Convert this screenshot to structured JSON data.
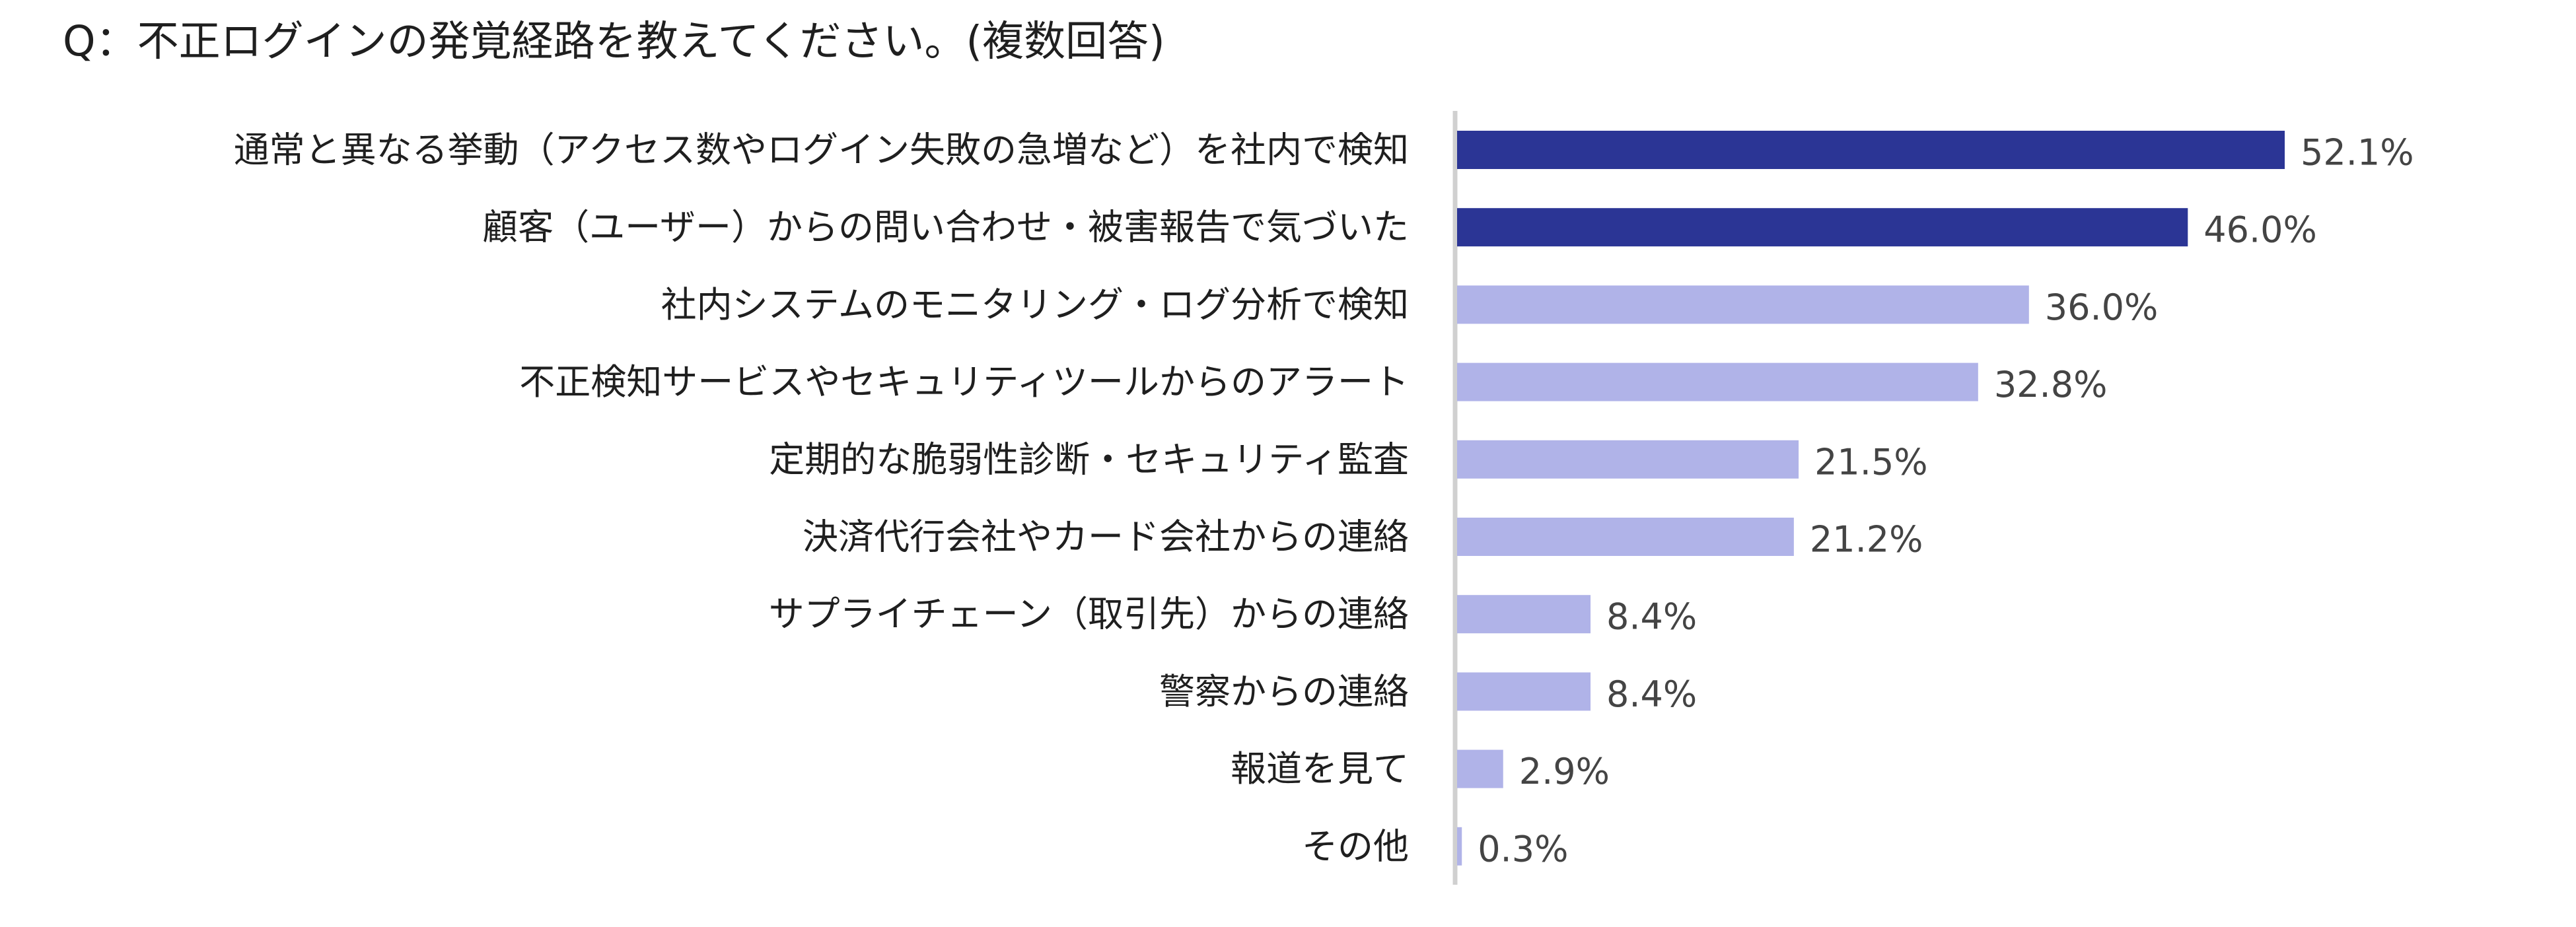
{
  "chart_data": {
    "type": "bar",
    "orientation": "horizontal",
    "title": "Q：不正ログインの発覚経路を教えてください。(複数回答)",
    "categories": [
      "通常と異なる挙動（アクセス数やログイン失敗の急増など）を社内で検知",
      "顧客（ユーザー）からの問い合わせ・被害報告で気づいた",
      "社内システムのモニタリング・ログ分析で検知",
      "不正検知サービスやセキュリティツールからのアラート",
      "定期的な脆弱性診断・セキュリティ監査",
      "決済代行会社やカード会社からの連絡",
      "サプライチェーン（取引先）からの連絡",
      "警察からの連絡",
      "報道を見て",
      "その他"
    ],
    "values": [
      52.1,
      46.0,
      36.0,
      32.8,
      21.5,
      21.2,
      8.4,
      8.4,
      2.9,
      0.3
    ],
    "value_labels": [
      "52.1%",
      "46.0%",
      "36.0%",
      "32.8%",
      "21.5%",
      "21.2%",
      "8.4%",
      "8.4%",
      "2.9%",
      "0.3%"
    ],
    "highlight_count": 2,
    "xlim": [
      0,
      60
    ],
    "grid": false,
    "legend": "none",
    "colors": {
      "highlight": "#2b3595",
      "normal": "#b0b3e8",
      "axis": "#d0d0d0"
    }
  }
}
